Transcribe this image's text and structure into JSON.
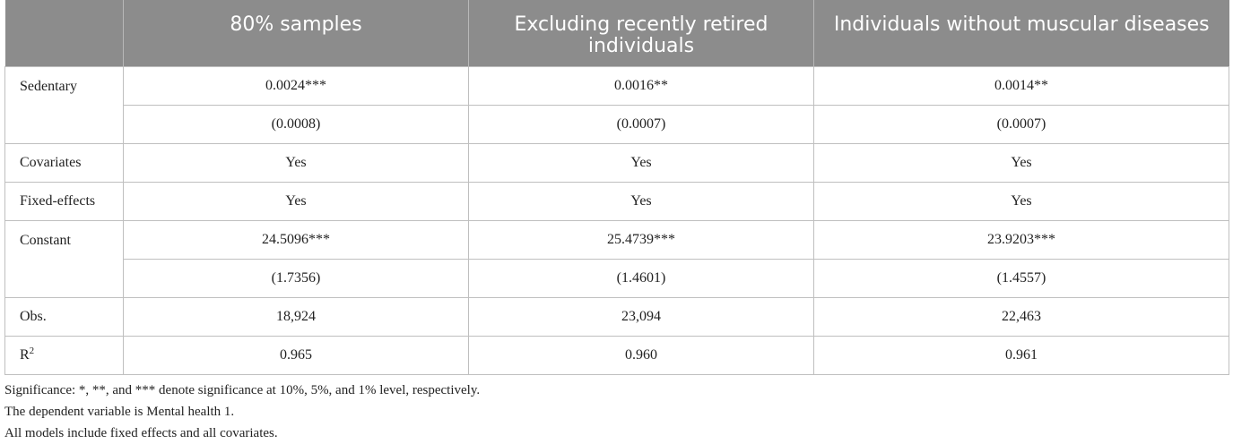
{
  "table": {
    "headers": [
      "",
      "80% samples",
      "Excluding recently retired individuals",
      "Individuals without muscular diseases"
    ],
    "rows": {
      "sedentary": {
        "label": "Sedentary",
        "coef": [
          "0.0024***",
          "0.0016**",
          "0.0014**"
        ],
        "se": [
          "(0.0008)",
          "(0.0007)",
          "(0.0007)"
        ]
      },
      "covariates": {
        "label": "Covariates",
        "values": [
          "Yes",
          "Yes",
          "Yes"
        ]
      },
      "fixed_effects": {
        "label": "Fixed-effects",
        "values": [
          "Yes",
          "Yes",
          "Yes"
        ]
      },
      "constant": {
        "label": "Constant",
        "coef": [
          "24.5096***",
          "25.4739***",
          "23.9203***"
        ],
        "se": [
          "(1.7356)",
          "(1.4601)",
          "(1.4557)"
        ]
      },
      "obs": {
        "label": "Obs.",
        "values": [
          "18,924",
          "23,094",
          "22,463"
        ]
      },
      "r2": {
        "label": "R",
        "label_sup": "2",
        "values": [
          "0.965",
          "0.960",
          "0.961"
        ]
      }
    }
  },
  "notes": [
    "Significance: *, **, and *** denote significance at 10%, 5%, and 1% level, respectively.",
    "The dependent variable is Mental health 1.",
    "All models include fixed effects and all covariates."
  ]
}
